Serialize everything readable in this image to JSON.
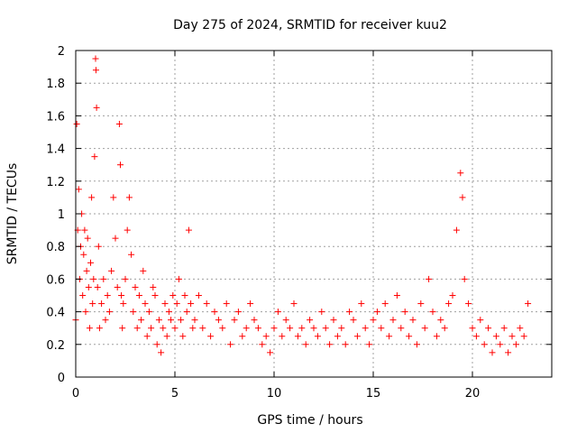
{
  "chart_data": {
    "type": "scatter",
    "title": "Day 275 of 2024, SRMTID for receiver kuu2",
    "xlabel": "GPS time / hours",
    "ylabel": "SRMTID / TECUs",
    "xlim": [
      0,
      24
    ],
    "ylim": [
      0,
      2
    ],
    "xticks": [
      0,
      5,
      10,
      15,
      20
    ],
    "yticks": [
      0,
      0.2,
      0.4,
      0.6,
      0.8,
      1,
      1.2,
      1.4,
      1.6,
      1.8,
      2
    ],
    "grid": true,
    "marker": "+",
    "color": "#ff0000",
    "series": [
      {
        "name": "SRMTID",
        "x": [
          0.0,
          0.05,
          0.1,
          0.15,
          0.2,
          0.25,
          0.3,
          0.35,
          0.4,
          0.45,
          0.5,
          0.55,
          0.6,
          0.65,
          0.7,
          0.75,
          0.8,
          0.85,
          0.9,
          0.95,
          1.0,
          1.02,
          1.05,
          1.1,
          1.15,
          1.2,
          1.3,
          1.4,
          1.5,
          1.6,
          1.7,
          1.8,
          1.9,
          2.0,
          2.1,
          2.2,
          2.25,
          2.3,
          2.35,
          2.4,
          2.5,
          2.6,
          2.7,
          2.8,
          2.9,
          3.0,
          3.1,
          3.2,
          3.3,
          3.4,
          3.5,
          3.6,
          3.7,
          3.8,
          3.9,
          4.0,
          4.1,
          4.2,
          4.3,
          4.4,
          4.5,
          4.6,
          4.7,
          4.8,
          4.9,
          5.0,
          5.1,
          5.2,
          5.3,
          5.4,
          5.5,
          5.6,
          5.7,
          5.8,
          5.9,
          6.0,
          6.2,
          6.4,
          6.6,
          6.8,
          7.0,
          7.2,
          7.4,
          7.6,
          7.8,
          8.0,
          8.2,
          8.4,
          8.6,
          8.8,
          9.0,
          9.2,
          9.4,
          9.6,
          9.8,
          10.0,
          10.2,
          10.4,
          10.6,
          10.8,
          11.0,
          11.2,
          11.4,
          11.6,
          11.8,
          12.0,
          12.2,
          12.4,
          12.6,
          12.8,
          13.0,
          13.2,
          13.4,
          13.6,
          13.8,
          14.0,
          14.2,
          14.4,
          14.6,
          14.8,
          15.0,
          15.2,
          15.4,
          15.6,
          15.8,
          16.0,
          16.2,
          16.4,
          16.6,
          16.8,
          17.0,
          17.2,
          17.4,
          17.6,
          17.8,
          18.0,
          18.2,
          18.4,
          18.6,
          18.8,
          19.0,
          19.2,
          19.4,
          19.5,
          19.6,
          19.8,
          20.0,
          20.2,
          20.4,
          20.6,
          20.8,
          21.0,
          21.2,
          21.4,
          21.6,
          21.8,
          22.0,
          22.2,
          22.4,
          22.6,
          22.8
        ],
        "y": [
          0.35,
          1.55,
          0.9,
          1.15,
          0.6,
          0.8,
          1.0,
          0.5,
          0.75,
          0.9,
          0.4,
          0.65,
          0.85,
          0.55,
          0.3,
          0.7,
          1.1,
          0.45,
          0.6,
          1.35,
          1.95,
          1.88,
          1.65,
          0.55,
          0.8,
          0.3,
          0.45,
          0.6,
          0.35,
          0.5,
          0.4,
          0.65,
          1.1,
          0.85,
          0.55,
          1.55,
          1.3,
          0.5,
          0.3,
          0.45,
          0.6,
          0.9,
          1.1,
          0.75,
          0.4,
          0.55,
          0.3,
          0.5,
          0.35,
          0.65,
          0.45,
          0.25,
          0.4,
          0.3,
          0.55,
          0.5,
          0.2,
          0.35,
          0.15,
          0.3,
          0.45,
          0.25,
          0.4,
          0.35,
          0.5,
          0.3,
          0.45,
          0.6,
          0.35,
          0.25,
          0.5,
          0.4,
          0.9,
          0.45,
          0.3,
          0.35,
          0.5,
          0.3,
          0.45,
          0.25,
          0.4,
          0.35,
          0.3,
          0.45,
          0.2,
          0.35,
          0.4,
          0.25,
          0.3,
          0.45,
          0.35,
          0.3,
          0.2,
          0.25,
          0.15,
          0.3,
          0.4,
          0.25,
          0.35,
          0.3,
          0.45,
          0.25,
          0.3,
          0.2,
          0.35,
          0.3,
          0.25,
          0.4,
          0.3,
          0.2,
          0.35,
          0.25,
          0.3,
          0.2,
          0.4,
          0.35,
          0.25,
          0.45,
          0.3,
          0.2,
          0.35,
          0.4,
          0.3,
          0.45,
          0.25,
          0.35,
          0.5,
          0.3,
          0.4,
          0.25,
          0.35,
          0.2,
          0.45,
          0.3,
          0.6,
          0.4,
          0.25,
          0.35,
          0.3,
          0.45,
          0.5,
          0.9,
          1.25,
          1.1,
          0.6,
          0.45,
          0.3,
          0.25,
          0.35,
          0.2,
          0.3,
          0.15,
          0.25,
          0.2,
          0.3,
          0.15,
          0.25,
          0.2,
          0.3,
          0.25,
          0.45
        ]
      }
    ]
  }
}
